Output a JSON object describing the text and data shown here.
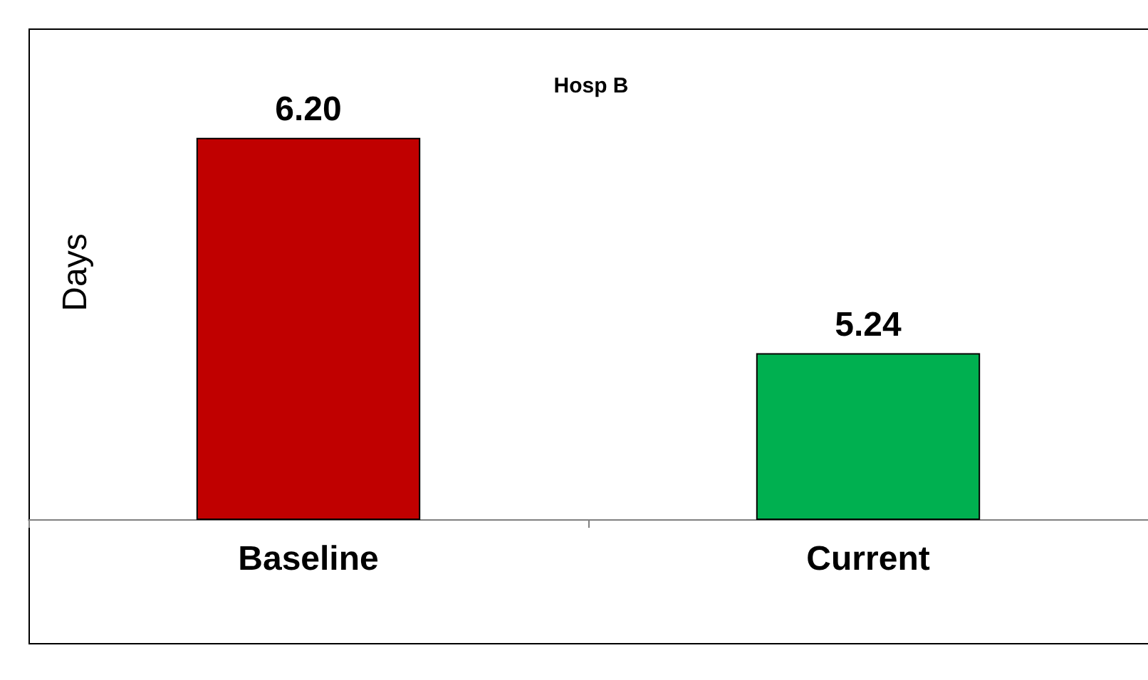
{
  "chart_data": {
    "type": "bar",
    "title": "Hosp B",
    "ylabel": "Days",
    "categories": [
      "Baseline",
      "Current"
    ],
    "values": [
      6.2,
      5.24
    ],
    "colors": [
      "#c00000",
      "#00b050"
    ],
    "value_labels": [
      "6.20",
      "5.24"
    ],
    "ylim": [
      4.5,
      6.7
    ],
    "tick_labels": "x",
    "grid": false
  }
}
